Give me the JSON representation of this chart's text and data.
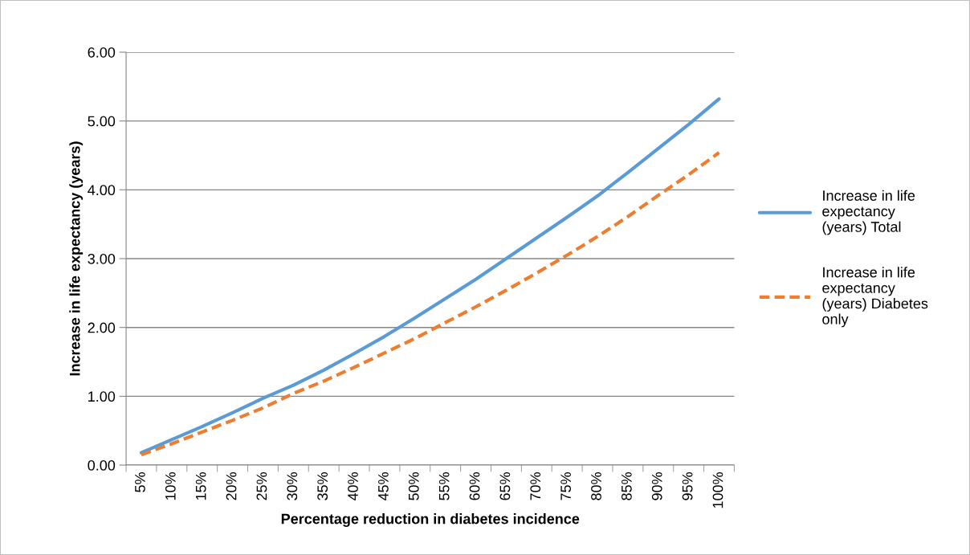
{
  "chart_data": {
    "type": "line",
    "xlabel": "Percentage reduction in diabetes incidence",
    "ylabel": "Increase in life expectancy (years)",
    "categories": [
      "5%",
      "10%",
      "15%",
      "20%",
      "25%",
      "30%",
      "35%",
      "40%",
      "45%",
      "50%",
      "55%",
      "60%",
      "65%",
      "70%",
      "75%",
      "80%",
      "85%",
      "90%",
      "95%",
      "100%"
    ],
    "series": [
      {
        "name": "Increase in life expectancy (years) Total",
        "color": "#5b9bd5",
        "line_style": "solid",
        "values": [
          0.18,
          0.37,
          0.56,
          0.76,
          0.97,
          1.16,
          1.38,
          1.62,
          1.87,
          2.14,
          2.42,
          2.7,
          3.0,
          3.3,
          3.6,
          3.91,
          4.25,
          4.6,
          4.95,
          5.32
        ]
      },
      {
        "name": "Increase in life expectancy (years) Diabetes only",
        "color": "#ed7d31",
        "line_style": "dashed",
        "values": [
          0.15,
          0.31,
          0.48,
          0.65,
          0.83,
          1.04,
          1.22,
          1.42,
          1.63,
          1.84,
          2.07,
          2.3,
          2.54,
          2.79,
          3.05,
          3.32,
          3.61,
          3.92,
          4.22,
          4.54
        ]
      }
    ],
    "ylim": [
      0,
      6
    ],
    "yticks": [
      {
        "value": 0,
        "label": "0.00"
      },
      {
        "value": 1,
        "label": "1.00"
      },
      {
        "value": 2,
        "label": "2.00"
      },
      {
        "value": 3,
        "label": "3.00"
      },
      {
        "value": 4,
        "label": "4.00"
      },
      {
        "value": 5,
        "label": "5.00"
      },
      {
        "value": 6,
        "label": "6.00"
      }
    ],
    "grid": "y",
    "legend": "right",
    "marker": "none"
  }
}
